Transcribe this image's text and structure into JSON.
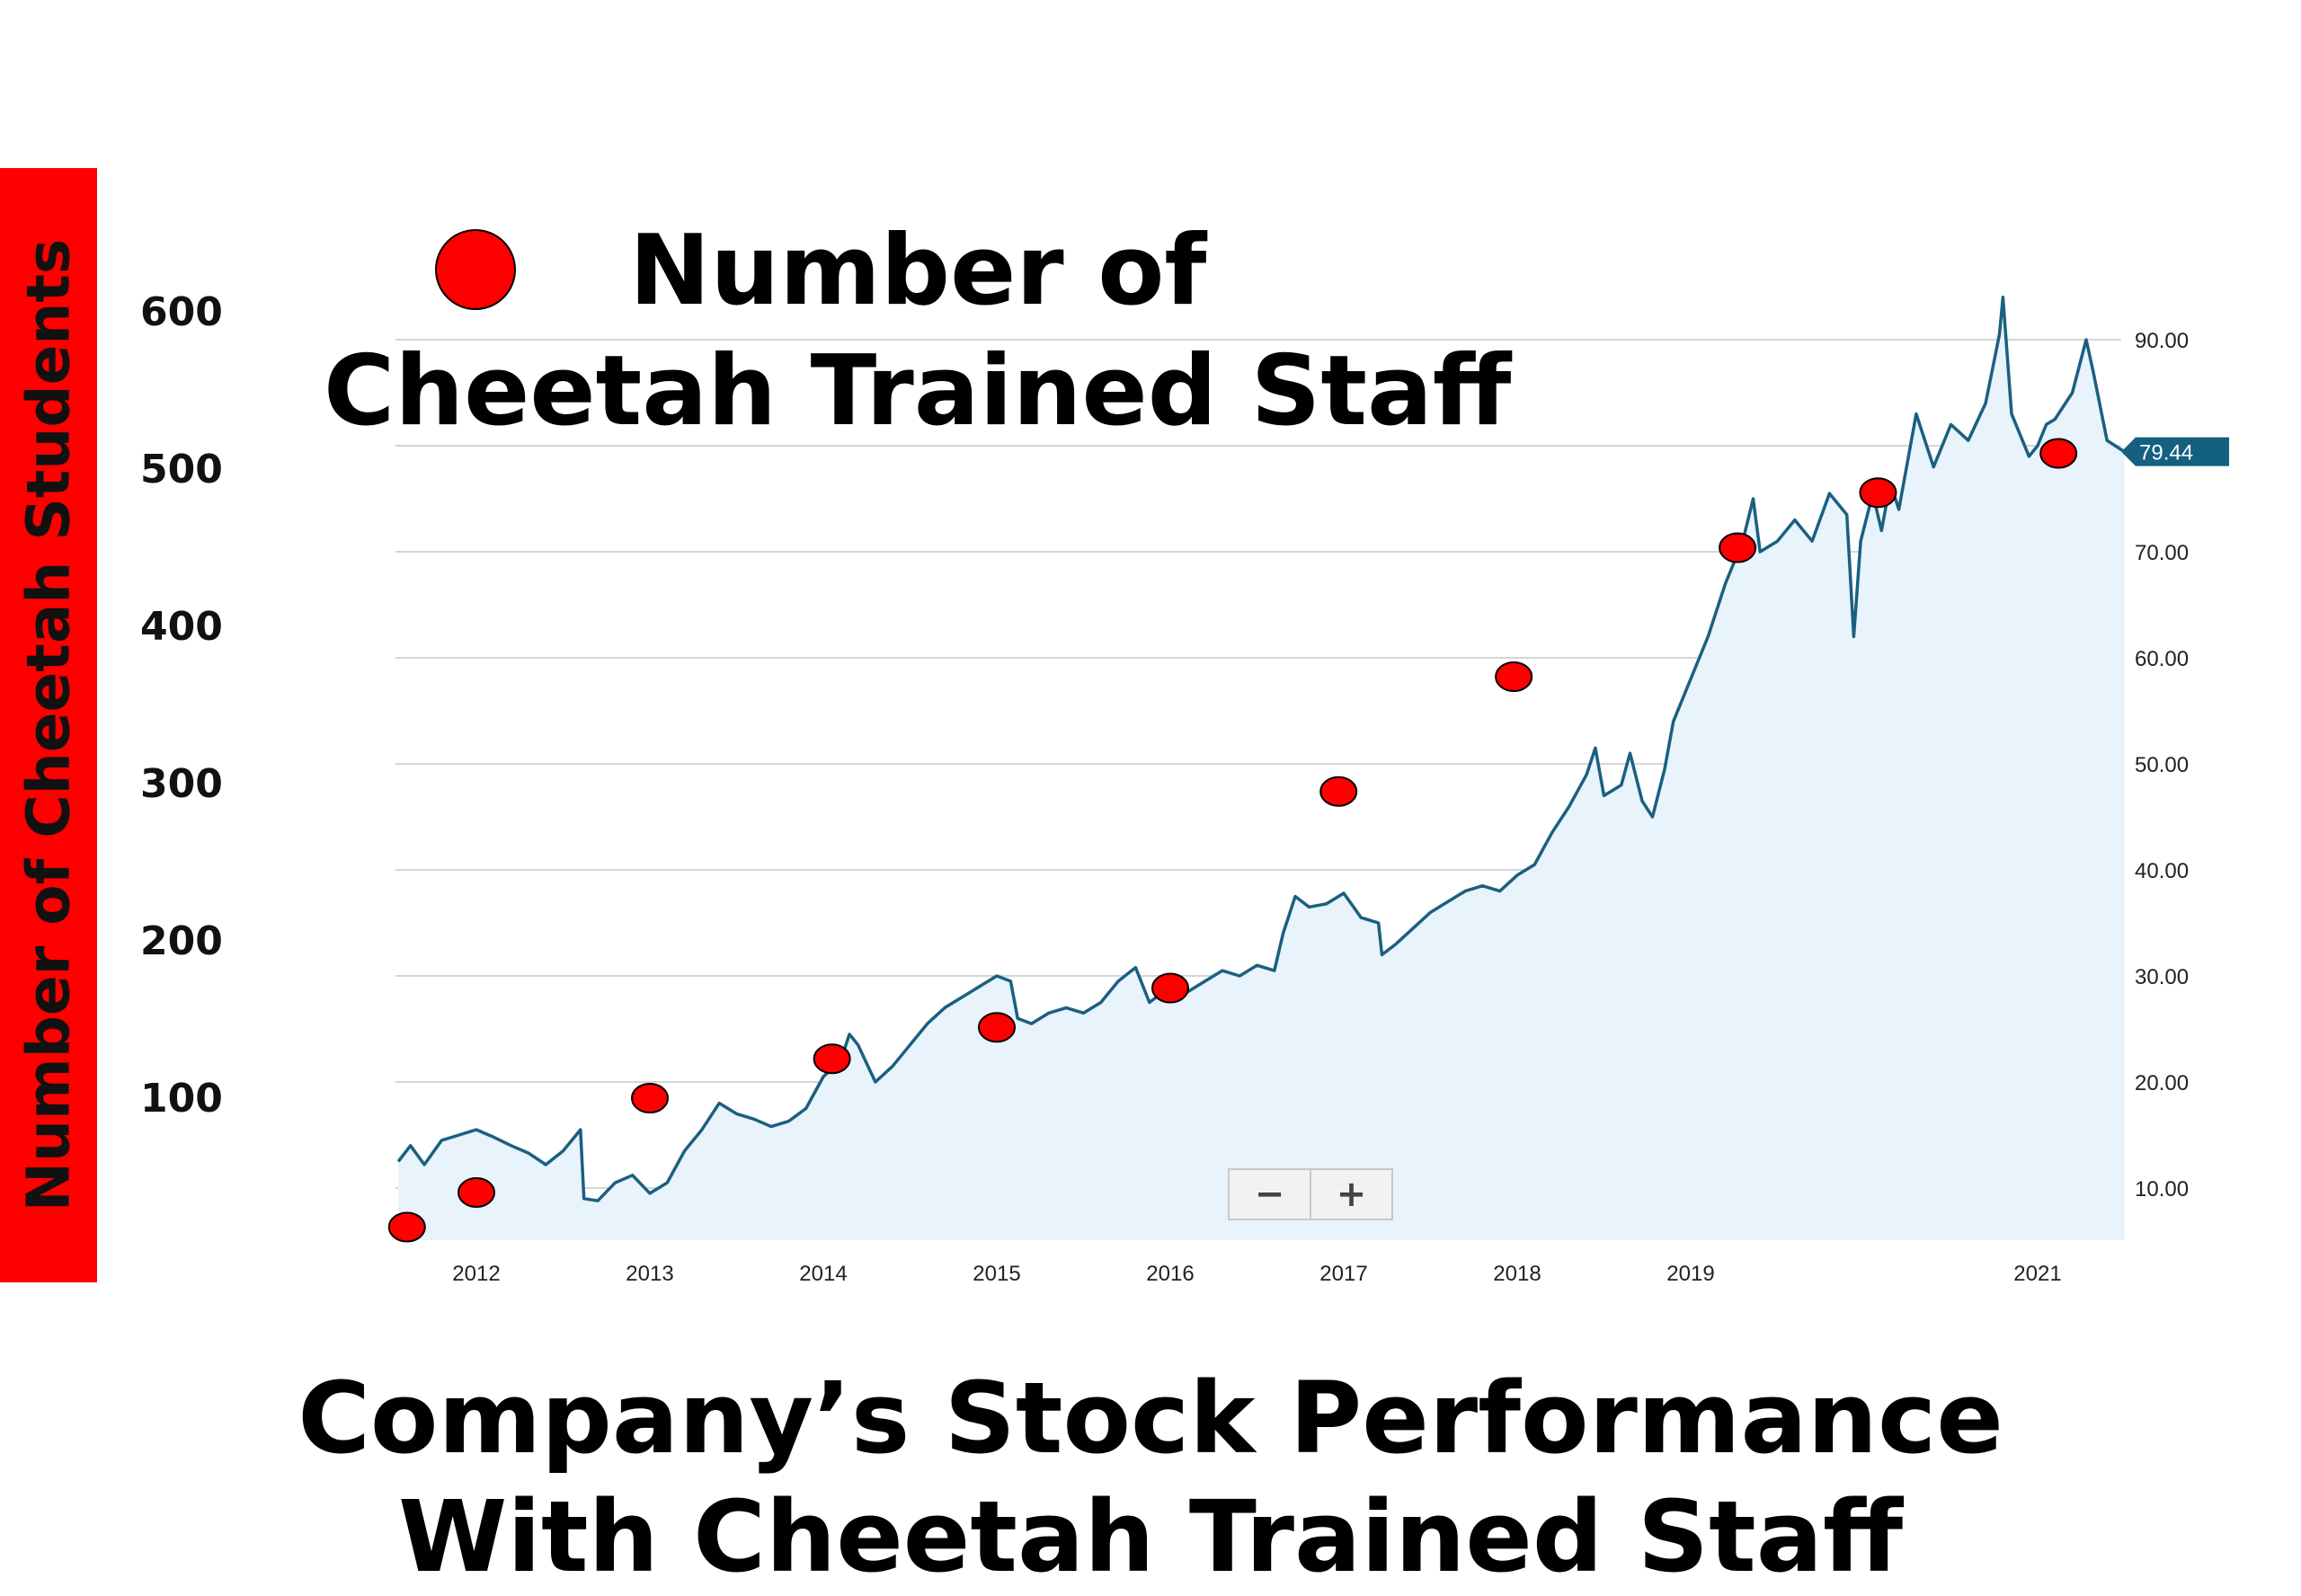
{
  "left_axis_title": "Number of Cheetah Students",
  "legend": {
    "line1": "Number of",
    "line2": "Cheetah Trained Staff"
  },
  "caption": {
    "line1": "Company’s Stock Performance",
    "line2": "With Cheetah Trained Staff"
  },
  "zoom": {
    "minus": "−",
    "plus": "+"
  },
  "colors": {
    "line": "#1a6080",
    "area": "#e8f3fb",
    "dots": "#ff0000",
    "axis_bar": "#ff0000",
    "badge": "#14607f"
  },
  "chart_data": {
    "type": "line",
    "title": "",
    "x_tick_labels": [
      "2012",
      "2013",
      "2014",
      "2015",
      "2016",
      "2017",
      "2018",
      "2019",
      "2021"
    ],
    "x_range": [
      2011.54,
      2021.5
    ],
    "right_axis": {
      "ylim": [
        5,
        90
      ],
      "ticks": [
        "10.00",
        "20.00",
        "30.00",
        "40.00",
        "50.00",
        "60.00",
        "70.00",
        "90.00"
      ]
    },
    "left_axis": {
      "ylim": [
        0,
        600
      ],
      "ticks": [
        "100",
        "200",
        "300",
        "400",
        "500",
        "600"
      ],
      "label": "Number of Cheetah Students"
    },
    "last_price_label": "79.44",
    "series": [
      {
        "kind": "line",
        "axis": "right",
        "points": [
          [
            2011.55,
            12.5
          ],
          [
            2011.62,
            14.0
          ],
          [
            2011.7,
            12.2
          ],
          [
            2011.8,
            14.5
          ],
          [
            2011.9,
            15.0
          ],
          [
            2012.0,
            15.5
          ],
          [
            2012.1,
            14.8
          ],
          [
            2012.2,
            14.0
          ],
          [
            2012.3,
            13.3
          ],
          [
            2012.4,
            12.2
          ],
          [
            2012.5,
            13.5
          ],
          [
            2012.6,
            15.5
          ],
          [
            2012.62,
            9.0
          ],
          [
            2012.7,
            8.8
          ],
          [
            2012.8,
            10.5
          ],
          [
            2012.9,
            11.2
          ],
          [
            2013.0,
            9.5
          ],
          [
            2013.1,
            10.5
          ],
          [
            2013.2,
            13.5
          ],
          [
            2013.3,
            15.5
          ],
          [
            2013.4,
            18.0
          ],
          [
            2013.5,
            17.0
          ],
          [
            2013.6,
            16.5
          ],
          [
            2013.7,
            15.8
          ],
          [
            2013.8,
            16.3
          ],
          [
            2013.9,
            17.5
          ],
          [
            2014.0,
            20.5
          ],
          [
            2014.1,
            22.0
          ],
          [
            2014.15,
            24.5
          ],
          [
            2014.2,
            23.5
          ],
          [
            2014.3,
            20.0
          ],
          [
            2014.4,
            21.5
          ],
          [
            2014.5,
            23.5
          ],
          [
            2014.6,
            25.5
          ],
          [
            2014.7,
            27.0
          ],
          [
            2014.8,
            28.0
          ],
          [
            2014.9,
            29.0
          ],
          [
            2015.0,
            30.0
          ],
          [
            2015.08,
            29.5
          ],
          [
            2015.12,
            26.0
          ],
          [
            2015.2,
            25.5
          ],
          [
            2015.3,
            26.5
          ],
          [
            2015.4,
            27.0
          ],
          [
            2015.5,
            26.5
          ],
          [
            2015.6,
            27.5
          ],
          [
            2015.7,
            29.5
          ],
          [
            2015.8,
            30.8
          ],
          [
            2015.88,
            27.5
          ],
          [
            2016.0,
            29.0
          ],
          [
            2016.1,
            28.5
          ],
          [
            2016.2,
            29.5
          ],
          [
            2016.3,
            30.5
          ],
          [
            2016.4,
            30.0
          ],
          [
            2016.5,
            31.0
          ],
          [
            2016.6,
            30.5
          ],
          [
            2016.65,
            34.0
          ],
          [
            2016.72,
            37.5
          ],
          [
            2016.8,
            36.5
          ],
          [
            2016.9,
            36.8
          ],
          [
            2017.0,
            37.8
          ],
          [
            2017.1,
            35.5
          ],
          [
            2017.2,
            35.0
          ],
          [
            2017.22,
            32.0
          ],
          [
            2017.3,
            33.0
          ],
          [
            2017.4,
            34.5
          ],
          [
            2017.5,
            36.0
          ],
          [
            2017.6,
            37.0
          ],
          [
            2017.7,
            38.0
          ],
          [
            2017.8,
            38.5
          ],
          [
            2017.9,
            38.0
          ],
          [
            2018.0,
            39.5
          ],
          [
            2018.1,
            40.5
          ],
          [
            2018.2,
            43.5
          ],
          [
            2018.3,
            46.0
          ],
          [
            2018.4,
            49.0
          ],
          [
            2018.45,
            51.5
          ],
          [
            2018.5,
            47.0
          ],
          [
            2018.6,
            48.0
          ],
          [
            2018.65,
            51.0
          ],
          [
            2018.72,
            46.5
          ],
          [
            2018.78,
            45.0
          ],
          [
            2018.85,
            49.5
          ],
          [
            2018.9,
            54.0
          ],
          [
            2019.0,
            58.0
          ],
          [
            2019.1,
            62.0
          ],
          [
            2019.2,
            67.0
          ],
          [
            2019.3,
            71.0
          ],
          [
            2019.36,
            75.0
          ],
          [
            2019.4,
            70.0
          ],
          [
            2019.5,
            71.0
          ],
          [
            2019.6,
            73.0
          ],
          [
            2019.7,
            71.0
          ],
          [
            2019.8,
            75.5
          ],
          [
            2019.9,
            73.5
          ],
          [
            2019.94,
            62.0
          ],
          [
            2019.98,
            71.0
          ],
          [
            2020.05,
            75.5
          ],
          [
            2020.1,
            72.0
          ],
          [
            2020.15,
            76.5
          ],
          [
            2020.2,
            74.0
          ],
          [
            2020.3,
            83.0
          ],
          [
            2020.4,
            78.0
          ],
          [
            2020.5,
            82.0
          ],
          [
            2020.6,
            80.5
          ],
          [
            2020.7,
            84.0
          ],
          [
            2020.78,
            90.5
          ],
          [
            2020.8,
            94.0
          ],
          [
            2020.85,
            83.0
          ],
          [
            2020.95,
            79.0
          ],
          [
            2021.0,
            80.0
          ],
          [
            2021.05,
            82.0
          ],
          [
            2021.1,
            82.5
          ],
          [
            2021.2,
            85.0
          ],
          [
            2021.28,
            90.0
          ],
          [
            2021.32,
            87.0
          ],
          [
            2021.4,
            80.5
          ],
          [
            2021.5,
            79.44
          ]
        ]
      },
      {
        "kind": "scatter",
        "name": "Number of Cheetah Trained Staff",
        "axis": "left",
        "points": [
          [
            2011.6,
            18
          ],
          [
            2012.0,
            40
          ],
          [
            2013.0,
            100
          ],
          [
            2014.05,
            125
          ],
          [
            2015.0,
            145
          ],
          [
            2016.0,
            170
          ],
          [
            2016.97,
            295
          ],
          [
            2017.98,
            368
          ],
          [
            2019.27,
            450
          ],
          [
            2020.08,
            485
          ],
          [
            2021.12,
            510
          ]
        ]
      }
    ]
  }
}
